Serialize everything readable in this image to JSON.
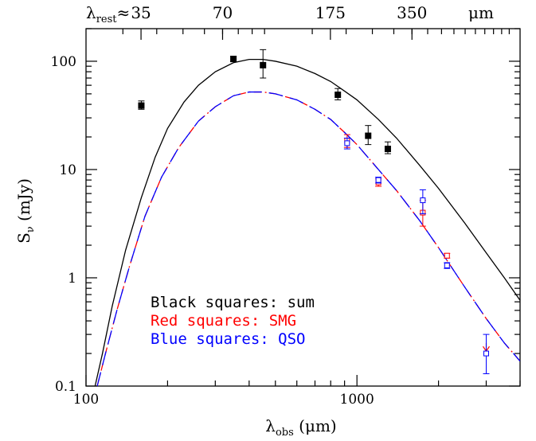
{
  "chart_data": {
    "type": "scatter",
    "x_scale": "log",
    "y_scale": "log",
    "xlim": [
      100,
      4000
    ],
    "ylim": [
      0.1,
      200
    ],
    "grid": false,
    "x_label": {
      "main": "λ",
      "sub": "obs",
      "unit": " (μm)"
    },
    "y_label": {
      "main": "S",
      "sub": "ν",
      "unit": " (mJy)"
    },
    "x_ticks": [
      {
        "value": 100,
        "label": "100"
      },
      {
        "value": 1000,
        "label": "1000"
      }
    ],
    "y_ticks": [
      {
        "value": 0.1,
        "label": "0.1"
      },
      {
        "value": 1,
        "label": "1"
      },
      {
        "value": 10,
        "label": "10"
      },
      {
        "value": 100,
        "label": "100"
      }
    ],
    "top_axis": {
      "prefix_main": "λ",
      "prefix_sub": "rest",
      "prefix_suffix": "≈",
      "redshift_factor": 4.56,
      "unit_label": "μm",
      "ticks": [
        {
          "value": 35,
          "label": "35"
        },
        {
          "value": 70,
          "label": "70"
        },
        {
          "value": 175,
          "label": "175"
        },
        {
          "value": 350,
          "label": "350"
        }
      ]
    },
    "legend": {
      "position": "bottom-left",
      "entries": [
        {
          "text": "Black squares: sum",
          "color": "#000000"
        },
        {
          "text": "Red squares: SMG",
          "color": "#ff0000"
        },
        {
          "text": "Blue squares: QSO",
          "color": "#0000ff"
        }
      ]
    },
    "series": [
      {
        "name": "Black squares: sum",
        "color": "#000000",
        "marker": "filled-square",
        "points": [
          {
            "x": 160,
            "y": 39,
            "err_lo": 3,
            "err_hi": 4
          },
          {
            "x": 350,
            "y": 105,
            "err_lo": 6,
            "err_hi": 6
          },
          {
            "x": 450,
            "y": 92,
            "err_lo": 22,
            "err_hi": 36
          },
          {
            "x": 850,
            "y": 49,
            "err_lo": 5,
            "err_hi": 7
          },
          {
            "x": 1100,
            "y": 20.5,
            "err_lo": 3.5,
            "err_hi": 5
          },
          {
            "x": 1300,
            "y": 15.5,
            "err_lo": 1.5,
            "err_hi": 2.5
          }
        ]
      },
      {
        "name": "Red squares: SMG",
        "color": "#ff0000",
        "marker": "open-square",
        "points": [
          {
            "x": 920,
            "y": 18.5,
            "err_lo": 2.5,
            "err_hi": 2.5
          },
          {
            "x": 1200,
            "y": 7.6,
            "err_lo": 0.6,
            "err_hi": 0.6
          },
          {
            "x": 1750,
            "y": 4.0,
            "err_lo": 1.0,
            "err_hi": 1.2
          },
          {
            "x": 2150,
            "y": 1.6,
            "err_lo": 0.08,
            "err_hi": 0.08
          }
        ],
        "upper_limits": [
          {
            "x": 3000,
            "y": 0.25,
            "y_to": 0.21
          }
        ]
      },
      {
        "name": "Blue squares: QSO",
        "color": "#0000ff",
        "marker": "open-square",
        "points": [
          {
            "x": 920,
            "y": 17.5,
            "err_lo": 2.0,
            "err_hi": 2.0
          },
          {
            "x": 1200,
            "y": 8.0,
            "err_lo": 0.5,
            "err_hi": 0.5
          },
          {
            "x": 1750,
            "y": 5.2,
            "err_lo": 1.3,
            "err_hi": 1.3
          },
          {
            "x": 2150,
            "y": 1.3,
            "err_lo": 0.08,
            "err_hi": 0.08
          },
          {
            "x": 3000,
            "y": 0.2,
            "err_lo": 0.07,
            "err_hi": 0.1
          }
        ]
      }
    ],
    "curves": [
      {
        "name": "Sum model",
        "color": "#000000",
        "style": "solid",
        "points": [
          [
            108,
            0.1
          ],
          [
            115,
            0.2
          ],
          [
            125,
            0.55
          ],
          [
            140,
            1.8
          ],
          [
            160,
            5.5
          ],
          [
            180,
            13
          ],
          [
            200,
            24
          ],
          [
            230,
            42
          ],
          [
            260,
            60
          ],
          [
            300,
            80
          ],
          [
            350,
            97
          ],
          [
            400,
            104
          ],
          [
            450,
            104
          ],
          [
            500,
            100
          ],
          [
            600,
            90
          ],
          [
            700,
            77
          ],
          [
            800,
            65
          ],
          [
            900,
            53
          ],
          [
            1000,
            44
          ],
          [
            1200,
            29
          ],
          [
            1400,
            19.5
          ],
          [
            1700,
            11
          ],
          [
            2000,
            6.7
          ],
          [
            2500,
            3.2
          ],
          [
            3000,
            1.7
          ],
          [
            3500,
            1.0
          ],
          [
            4000,
            0.62
          ]
        ]
      },
      {
        "name": "SMG model",
        "color": "#ff0000",
        "style": "dash-dot",
        "points": [
          [
            110,
            0.1
          ],
          [
            118,
            0.2
          ],
          [
            130,
            0.5
          ],
          [
            145,
            1.3
          ],
          [
            165,
            3.7
          ],
          [
            190,
            8.5
          ],
          [
            220,
            16
          ],
          [
            260,
            28
          ],
          [
            300,
            38
          ],
          [
            350,
            48
          ],
          [
            400,
            52
          ],
          [
            450,
            52
          ],
          [
            500,
            50
          ],
          [
            600,
            44
          ],
          [
            700,
            36
          ],
          [
            800,
            29
          ],
          [
            900,
            22
          ],
          [
            1000,
            17
          ],
          [
            1200,
            10
          ],
          [
            1400,
            6.4
          ],
          [
            1700,
            3.4
          ],
          [
            2000,
            1.9
          ],
          [
            2500,
            0.82
          ],
          [
            3000,
            0.42
          ],
          [
            3500,
            0.25
          ],
          [
            4000,
            0.17
          ]
        ]
      },
      {
        "name": "QSO model",
        "color": "#0000ff",
        "style": "long-dash",
        "points": [
          [
            110,
            0.1
          ],
          [
            118,
            0.2
          ],
          [
            130,
            0.5
          ],
          [
            145,
            1.3
          ],
          [
            165,
            3.7
          ],
          [
            190,
            8.5
          ],
          [
            220,
            16
          ],
          [
            260,
            28
          ],
          [
            300,
            38
          ],
          [
            350,
            48
          ],
          [
            400,
            52
          ],
          [
            450,
            52
          ],
          [
            500,
            50
          ],
          [
            600,
            44
          ],
          [
            700,
            36
          ],
          [
            800,
            29
          ],
          [
            900,
            22
          ],
          [
            1000,
            17
          ],
          [
            1200,
            10
          ],
          [
            1400,
            6.4
          ],
          [
            1700,
            3.4
          ],
          [
            2000,
            1.9
          ],
          [
            2500,
            0.82
          ],
          [
            3000,
            0.42
          ],
          [
            3500,
            0.25
          ],
          [
            4000,
            0.17
          ]
        ]
      }
    ]
  }
}
